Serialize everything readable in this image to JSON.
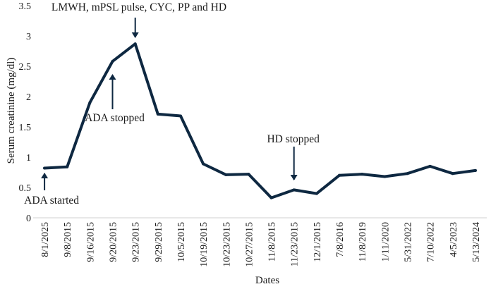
{
  "chart_data": {
    "type": "line",
    "title": "LMWH, mPSL pulse, CYC, PP and HD",
    "xlabel": "Dates",
    "ylabel": "Serum creatinine (mg/dl)",
    "ylim": [
      0,
      3.5
    ],
    "yticks": [
      "0",
      "0.5",
      "1",
      "1.5",
      "2",
      "2.5",
      "3",
      "3.5"
    ],
    "grid": false,
    "categories": [
      "8/1/2025",
      "9/8/2015",
      "9/16/2015",
      "9/20/2015",
      "9/23/2015",
      "9/29/2015",
      "10/5/2015",
      "10/19/2015",
      "10/23/2015",
      "10/27/2015",
      "11/8/2015",
      "11/23/2015",
      "12/1/2015",
      "7/8/2016",
      "11/8/2019",
      "1/11/2020",
      "5/31/2022",
      "7/10/2022",
      "4/5/2023",
      "5/13/2024"
    ],
    "series": [
      {
        "name": "Serum creatinine",
        "color": "#0e2841",
        "values": [
          0.82,
          0.84,
          1.9,
          2.58,
          2.87,
          1.71,
          1.68,
          0.89,
          0.71,
          0.72,
          0.33,
          0.46,
          0.4,
          0.7,
          0.72,
          0.68,
          0.73,
          0.85,
          0.73,
          0.78
        ]
      }
    ],
    "annotations": [
      {
        "text": "ADA started",
        "index": 0,
        "arrow": "up"
      },
      {
        "text": "ADA stopped",
        "index": 3,
        "arrow": "up"
      },
      {
        "text": "HD stopped",
        "index": 11,
        "arrow": "down"
      },
      {
        "text": "LMWH, mPSL pulse, CYC, PP and HD",
        "index": 4,
        "arrow": "down"
      }
    ]
  }
}
